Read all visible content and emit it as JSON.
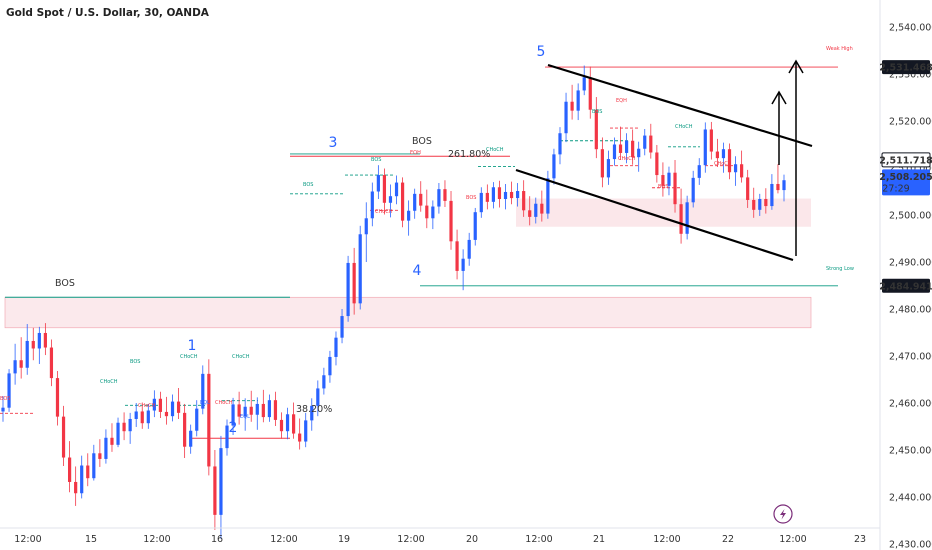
{
  "chart_data": {
    "type": "candlestick",
    "title": "Gold Spot / U.S. Dollar, 30, OANDA",
    "ylim": [
      2425,
      2545
    ],
    "y_ticks": [
      "2,540.000",
      "2,530.000",
      "2,520.000",
      "2,510.000",
      "2,500.000",
      "2,490.000",
      "2,480.000",
      "2,470.000",
      "2,460.000",
      "2,450.000",
      "2,440.000",
      "2,430.000"
    ],
    "y_tick_values": [
      2540,
      2530,
      2520,
      2510,
      2500,
      2490,
      2480,
      2470,
      2460,
      2450,
      2440,
      2430
    ],
    "x_ticks": [
      "12:00",
      "15",
      "12:00",
      "16",
      "12:00",
      "19",
      "12:00",
      "20",
      "12:00",
      "21",
      "12:00",
      "22",
      "12:00",
      "23"
    ],
    "price_labels": [
      {
        "text": "2,531.468",
        "value": 2531.468,
        "style": "dark"
      },
      {
        "text": "2,511.718",
        "value": 2511.718,
        "style": "outline"
      },
      {
        "text": "2,508.205",
        "value": 2508.205,
        "style": "blue",
        "sub": "27:29"
      },
      {
        "text": "2,484.941",
        "value": 2484.941,
        "style": "dark"
      }
    ],
    "annotations": {
      "bos": "BOS",
      "choch": "CHoCH",
      "eqh": "EQH",
      "eql": "EQL",
      "fib_261": "261.80%",
      "fib_38": "38.20%",
      "weak_high": "Weak High",
      "strong_low": "Strong Low"
    },
    "waves": [
      "1",
      "2",
      "3",
      "4",
      "5"
    ],
    "candles": [
      [
        2458.2,
        2461.5,
        2456.0,
        2459.0
      ],
      [
        2459.0,
        2467.2,
        2458.1,
        2466.3
      ],
      [
        2466.3,
        2472.6,
        2463.9,
        2469.1
      ],
      [
        2469.1,
        2474.0,
        2465.2,
        2467.5
      ],
      [
        2467.5,
        2476.8,
        2466.0,
        2473.2
      ],
      [
        2473.2,
        2476.0,
        2469.1,
        2471.6
      ],
      [
        2471.6,
        2476.2,
        2468.3,
        2474.9
      ],
      [
        2474.9,
        2477.0,
        2470.2,
        2471.8
      ],
      [
        2471.8,
        2473.5,
        2463.6,
        2465.3
      ],
      [
        2465.3,
        2466.8,
        2455.2,
        2457.1
      ],
      [
        2457.1,
        2459.4,
        2446.6,
        2448.4
      ],
      [
        2448.4,
        2451.9,
        2441.0,
        2443.2
      ],
      [
        2443.2,
        2446.5,
        2438.1,
        2440.8
      ],
      [
        2440.8,
        2448.8,
        2439.7,
        2446.7
      ],
      [
        2446.7,
        2449.3,
        2442.3,
        2444.0
      ],
      [
        2444.0,
        2451.1,
        2443.5,
        2449.3
      ],
      [
        2449.3,
        2452.3,
        2446.4,
        2448.1
      ],
      [
        2448.1,
        2454.4,
        2447.1,
        2452.6
      ],
      [
        2452.6,
        2455.7,
        2449.6,
        2451.1
      ],
      [
        2451.1,
        2456.9,
        2450.6,
        2455.8
      ],
      [
        2455.8,
        2458.0,
        2452.1,
        2454.0
      ],
      [
        2454.0,
        2457.9,
        2451.3,
        2456.6
      ],
      [
        2456.6,
        2460.0,
        2454.9,
        2458.2
      ],
      [
        2458.2,
        2460.1,
        2454.5,
        2455.7
      ],
      [
        2455.7,
        2459.8,
        2454.5,
        2458.4
      ],
      [
        2458.4,
        2462.7,
        2457.0,
        2460.9
      ],
      [
        2460.9,
        2462.4,
        2456.8,
        2458.1
      ],
      [
        2458.1,
        2461.3,
        2455.4,
        2457.2
      ],
      [
        2457.2,
        2461.8,
        2456.1,
        2460.3
      ],
      [
        2460.3,
        2463.2,
        2456.6,
        2457.9
      ],
      [
        2457.9,
        2459.8,
        2448.3,
        2450.7
      ],
      [
        2450.7,
        2455.4,
        2449.2,
        2454.1
      ],
      [
        2454.1,
        2460.6,
        2452.9,
        2458.8
      ],
      [
        2458.8,
        2468.0,
        2457.6,
        2466.2
      ],
      [
        2466.2,
        2469.3,
        2444.6,
        2446.5
      ],
      [
        2446.5,
        2450.0,
        2433.0,
        2436.2
      ],
      [
        2436.2,
        2453.0,
        2431.1,
        2450.4
      ],
      [
        2450.4,
        2456.5,
        2448.8,
        2455.2
      ],
      [
        2455.2,
        2461.1,
        2453.2,
        2459.7
      ],
      [
        2459.7,
        2462.4,
        2455.4,
        2457.1
      ],
      [
        2457.1,
        2461.0,
        2454.1,
        2459.2
      ],
      [
        2459.2,
        2462.6,
        2456.0,
        2457.5
      ],
      [
        2457.5,
        2461.2,
        2454.3,
        2459.8
      ],
      [
        2459.8,
        2462.8,
        2455.9,
        2457.0
      ],
      [
        2457.0,
        2461.8,
        2456.0,
        2460.6
      ],
      [
        2460.6,
        2462.4,
        2455.1,
        2456.4
      ],
      [
        2456.4,
        2458.0,
        2452.4,
        2454.0
      ],
      [
        2454.0,
        2459.0,
        2452.3,
        2457.6
      ],
      [
        2457.6,
        2460.1,
        2452.4,
        2453.5
      ],
      [
        2453.5,
        2456.7,
        2450.1,
        2451.8
      ],
      [
        2451.8,
        2457.9,
        2450.6,
        2456.3
      ],
      [
        2456.3,
        2461.0,
        2454.1,
        2459.4
      ],
      [
        2459.4,
        2464.8,
        2457.2,
        2463.1
      ],
      [
        2463.1,
        2467.5,
        2461.8,
        2465.9
      ],
      [
        2465.9,
        2471.1,
        2464.3,
        2469.8
      ],
      [
        2469.8,
        2475.2,
        2468.0,
        2473.9
      ],
      [
        2473.9,
        2480.0,
        2472.7,
        2478.5
      ],
      [
        2478.5,
        2491.3,
        2477.3,
        2489.8
      ],
      [
        2489.8,
        2493.0,
        2478.8,
        2481.2
      ],
      [
        2481.2,
        2497.7,
        2479.9,
        2495.9
      ],
      [
        2495.9,
        2502.7,
        2490.0,
        2499.3
      ],
      [
        2499.3,
        2506.9,
        2497.6,
        2505.0
      ],
      [
        2505.0,
        2510.6,
        2503.4,
        2508.5
      ],
      [
        2508.5,
        2509.9,
        2500.1,
        2502.6
      ],
      [
        2502.6,
        2506.5,
        2499.5,
        2504.0
      ],
      [
        2504.0,
        2508.4,
        2502.3,
        2506.9
      ],
      [
        2506.9,
        2508.0,
        2497.4,
        2498.8
      ],
      [
        2498.8,
        2503.1,
        2495.6,
        2500.9
      ],
      [
        2500.9,
        2505.6,
        2499.2,
        2504.5
      ],
      [
        2504.5,
        2507.2,
        2500.7,
        2502.0
      ],
      [
        2502.0,
        2505.4,
        2497.2,
        2499.3
      ],
      [
        2499.3,
        2503.1,
        2497.0,
        2501.8
      ],
      [
        2501.8,
        2506.8,
        2500.3,
        2505.5
      ],
      [
        2505.5,
        2507.4,
        2501.7,
        2503.0
      ],
      [
        2503.0,
        2505.1,
        2492.6,
        2494.4
      ],
      [
        2494.4,
        2496.9,
        2486.3,
        2488.1
      ],
      [
        2488.1,
        2492.7,
        2484.0,
        2490.7
      ],
      [
        2490.7,
        2496.2,
        2489.2,
        2494.7
      ],
      [
        2494.7,
        2501.5,
        2493.5,
        2500.6
      ],
      [
        2500.6,
        2505.9,
        2499.4,
        2504.7
      ],
      [
        2504.7,
        2506.5,
        2501.2,
        2502.8
      ],
      [
        2502.8,
        2507.0,
        2501.4,
        2505.9
      ],
      [
        2505.9,
        2507.3,
        2501.6,
        2503.4
      ],
      [
        2503.4,
        2506.6,
        2501.2,
        2504.9
      ],
      [
        2504.9,
        2507.1,
        2502.3,
        2503.6
      ],
      [
        2503.6,
        2506.8,
        2501.8,
        2505.1
      ],
      [
        2505.1,
        2507.4,
        2499.6,
        2501.0
      ],
      [
        2501.0,
        2504.0,
        2497.8,
        2499.6
      ],
      [
        2499.6,
        2503.7,
        2498.2,
        2502.4
      ],
      [
        2502.4,
        2505.2,
        2498.6,
        2500.3
      ],
      [
        2500.3,
        2509.4,
        2499.2,
        2507.8
      ],
      [
        2507.8,
        2514.1,
        2506.5,
        2512.9
      ],
      [
        2512.9,
        2518.7,
        2510.8,
        2517.4
      ],
      [
        2517.4,
        2526.0,
        2515.5,
        2524.1
      ],
      [
        2524.1,
        2527.7,
        2520.3,
        2522.2
      ],
      [
        2522.2,
        2528.0,
        2520.2,
        2526.5
      ],
      [
        2526.5,
        2531.8,
        2525.5,
        2529.3
      ],
      [
        2529.3,
        2531.6,
        2520.5,
        2522.4
      ],
      [
        2522.4,
        2525.1,
        2512.1,
        2514.0
      ],
      [
        2514.0,
        2516.5,
        2505.9,
        2508.0
      ],
      [
        2508.0,
        2513.7,
        2506.4,
        2511.9
      ],
      [
        2511.9,
        2516.5,
        2510.5,
        2515.0
      ],
      [
        2515.0,
        2518.8,
        2511.7,
        2513.2
      ],
      [
        2513.2,
        2517.4,
        2511.0,
        2515.8
      ],
      [
        2515.8,
        2518.2,
        2510.7,
        2512.3
      ],
      [
        2512.3,
        2515.6,
        2509.2,
        2514.1
      ],
      [
        2514.1,
        2518.3,
        2512.7,
        2516.9
      ],
      [
        2516.9,
        2519.4,
        2512.0,
        2513.3
      ],
      [
        2513.3,
        2514.9,
        2506.9,
        2508.5
      ],
      [
        2508.5,
        2511.2,
        2503.9,
        2506.2
      ],
      [
        2506.2,
        2510.3,
        2504.2,
        2509.0
      ],
      [
        2509.0,
        2511.7,
        2500.5,
        2502.3
      ],
      [
        2502.3,
        2505.6,
        2493.9,
        2496.0
      ],
      [
        2496.0,
        2504.1,
        2494.8,
        2502.7
      ],
      [
        2502.7,
        2509.4,
        2501.6,
        2507.9
      ],
      [
        2507.9,
        2512.1,
        2506.4,
        2510.6
      ],
      [
        2510.6,
        2519.7,
        2509.0,
        2518.2
      ],
      [
        2518.2,
        2519.8,
        2511.8,
        2513.5
      ],
      [
        2513.5,
        2516.2,
        2510.2,
        2512.1
      ],
      [
        2512.1,
        2515.4,
        2509.0,
        2514.0
      ],
      [
        2514.0,
        2515.2,
        2507.6,
        2509.1
      ],
      [
        2509.1,
        2512.5,
        2506.2,
        2510.8
      ],
      [
        2510.8,
        2513.7,
        2506.9,
        2508.0
      ],
      [
        2508.0,
        2509.6,
        2501.5,
        2503.2
      ],
      [
        2503.2,
        2505.8,
        2499.4,
        2501.1
      ],
      [
        2501.1,
        2504.5,
        2499.8,
        2503.4
      ],
      [
        2503.4,
        2505.7,
        2500.3,
        2501.9
      ],
      [
        2501.9,
        2508.7,
        2501.1,
        2506.6
      ],
      [
        2506.6,
        2510.8,
        2504.6,
        2505.3
      ],
      [
        2505.3,
        2508.6,
        2502.9,
        2507.4
      ]
    ]
  }
}
